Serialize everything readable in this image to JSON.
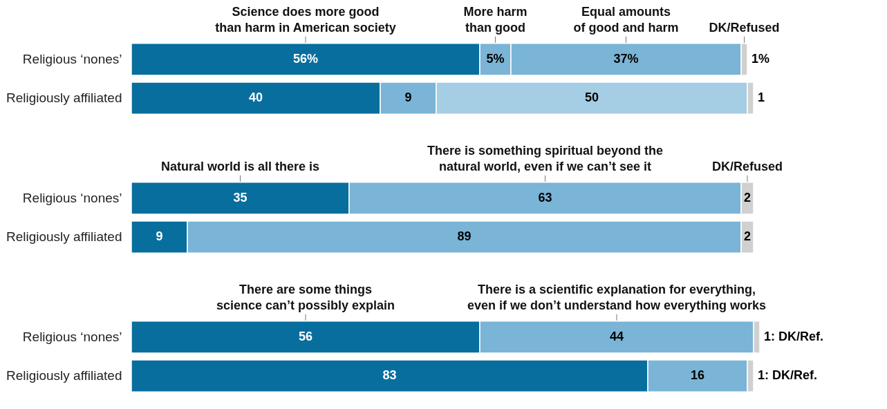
{
  "chart_data": [
    {
      "type": "bar",
      "orientation": "horizontal",
      "stacked": true,
      "tick_labels": "y",
      "categories": [
        "Religious ‘nones’",
        "Religiously affiliated"
      ],
      "series": [
        {
          "name": "Science does more good\nthan harm in American society",
          "color": "#086e9e",
          "values": [
            56,
            40
          ],
          "value_labels": [
            "56%",
            "40"
          ]
        },
        {
          "name": "More harm\nthan good",
          "color": "#7ab4d6",
          "values": [
            5,
            9
          ],
          "value_labels": [
            "5%",
            "9"
          ]
        },
        {
          "name": "Equal amounts\nof good and harm",
          "colors": [
            "#7ab4d6",
            "#a5cde3"
          ],
          "values": [
            37,
            50
          ],
          "value_labels": [
            "37%",
            "50"
          ]
        },
        {
          "name": "DK/Refused",
          "color": "#d0d0d0",
          "values": [
            1,
            1
          ],
          "value_labels": [
            "1%",
            "1"
          ]
        }
      ]
    },
    {
      "type": "bar",
      "orientation": "horizontal",
      "stacked": true,
      "tick_labels": "y",
      "categories": [
        "Religious ‘nones’",
        "Religiously affiliated"
      ],
      "data_labels": true,
      "series": [
        {
          "name": "Natural world is all there is",
          "color": "#086e9e",
          "values": [
            35,
            9
          ]
        },
        {
          "name": "There is something spiritual beyond the\nnatural world, even if we can’t see it",
          "color": "#7ab4d6",
          "values": [
            63,
            89
          ]
        },
        {
          "name": "DK/Refused",
          "color": "#d0d0d0",
          "values": [
            2,
            2
          ]
        }
      ]
    },
    {
      "type": "bar",
      "orientation": "horizontal",
      "stacked": true,
      "tick_labels": "y",
      "categories": [
        "Religious ‘nones’",
        "Religiously affiliated"
      ],
      "series": [
        {
          "name": "There are some things\nscience can’t possibly explain",
          "color": "#086e9e",
          "values": [
            56,
            83
          ],
          "value_labels": [
            "56",
            "83"
          ]
        },
        {
          "name": "There is a scientific explanation for everything,\neven if we don’t understand how everything works",
          "color": "#7ab4d6",
          "values": [
            44,
            16
          ],
          "value_labels": [
            "44",
            "16"
          ]
        },
        {
          "color": "#d0d0d0",
          "values": [
            1,
            1
          ],
          "value_labels": [
            "1: DK/Ref.",
            "1: DK/Ref."
          ]
        }
      ]
    }
  ]
}
